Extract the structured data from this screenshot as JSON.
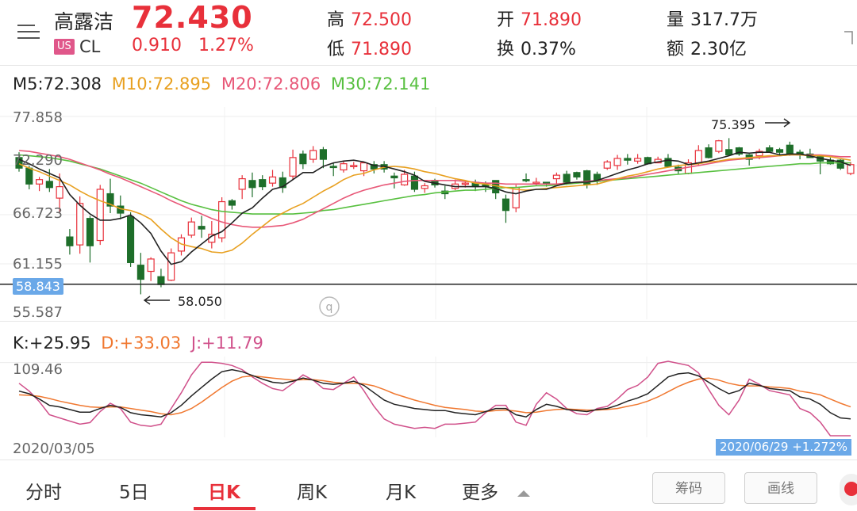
{
  "header": {
    "stock_name": "高露洁",
    "market_badge": "US",
    "ticker": "CL",
    "price": "72.430",
    "change": "0.910",
    "change_pct": "1.27%",
    "high_label": "高",
    "high_value": "72.500",
    "low_label": "低",
    "low_value": "71.890",
    "open_label": "开",
    "open_value": "71.890",
    "turnover_label": "换",
    "turnover_value": "0.37%",
    "volume_label": "量",
    "volume_value": "317.7万",
    "amount_label": "额",
    "amount_value": "2.30亿",
    "menu_icon": "menu-icon"
  },
  "colors": {
    "up": "#e8303a",
    "down": "#1e6e2a",
    "ma5": "#222222",
    "ma10": "#e8a020",
    "ma20": "#e85878",
    "ma30": "#58c040",
    "k": "#222222",
    "d": "#f07830",
    "j": "#d0508a",
    "badge": "#6aa8e8"
  },
  "ma": {
    "m5": "M5:72.308",
    "m10": "M10:72.895",
    "m20": "M20:72.806",
    "m30": "M30:72.141"
  },
  "price_axis": {
    "t1": "77.858",
    "t2": "72.290",
    "t3": "66.723",
    "t4": "61.155",
    "t5": "55.587"
  },
  "current_line_label": "58.843",
  "annotations": {
    "high": "75.395",
    "low": "58.050"
  },
  "kdj": {
    "k": "K:+25.95",
    "d": "D:+33.03",
    "j": "J:+11.79",
    "top": "109.46"
  },
  "dates": {
    "start": "2020/03/05",
    "end": "2020/06/29",
    "end_change": "+1.272%"
  },
  "tabs": [
    {
      "label": "分时"
    },
    {
      "label": "5日"
    },
    {
      "label": "日K"
    },
    {
      "label": "周K"
    },
    {
      "label": "月K"
    },
    {
      "label": "更多"
    }
  ],
  "buttons": {
    "chips": "筹码",
    "draw": "画线"
  },
  "chart_data": {
    "type": "candlestick",
    "ylim": [
      55.587,
      77.858
    ],
    "candles": [
      [
        73.2,
        72.0,
        73.8,
        71.6
      ],
      [
        72.0,
        70.2,
        72.3,
        69.6
      ],
      [
        70.2,
        70.7,
        71.0,
        69.4
      ],
      [
        70.5,
        69.8,
        71.9,
        69.3
      ],
      [
        68.6,
        69.9,
        71.4,
        66.9
      ],
      [
        64.2,
        63.2,
        65.1,
        62.2
      ],
      [
        63.3,
        68.0,
        68.8,
        62.3
      ],
      [
        66.3,
        63.2,
        66.6,
        61.3
      ],
      [
        63.8,
        69.6,
        70.1,
        63.3
      ],
      [
        69.1,
        67.7,
        70.8,
        66.9
      ],
      [
        67.7,
        66.9,
        68.9,
        66.2
      ],
      [
        66.5,
        61.3,
        67.0,
        60.8
      ],
      [
        61.0,
        59.4,
        62.4,
        57.7
      ],
      [
        60.3,
        61.7,
        61.9,
        59.2
      ],
      [
        59.7,
        58.8,
        60.6,
        58.5
      ],
      [
        59.3,
        62.4,
        62.9,
        59.2
      ],
      [
        62.6,
        64.1,
        64.5,
        62.1
      ],
      [
        64.4,
        65.9,
        66.4,
        64.1
      ],
      [
        65.4,
        65.1,
        66.6,
        64.1
      ],
      [
        63.6,
        64.5,
        66.0,
        62.9
      ],
      [
        64.1,
        68.2,
        68.7,
        63.6
      ],
      [
        68.3,
        67.8,
        68.5,
        67.3
      ],
      [
        69.6,
        70.8,
        71.2,
        68.5
      ],
      [
        70.6,
        69.8,
        71.5,
        68.7
      ],
      [
        70.7,
        69.9,
        71.2,
        69.5
      ],
      [
        70.3,
        71.0,
        71.8,
        69.9
      ],
      [
        70.9,
        69.8,
        71.6,
        69.2
      ],
      [
        71.1,
        73.2,
        74.1,
        70.7
      ],
      [
        73.6,
        72.5,
        74.0,
        71.9
      ],
      [
        73.0,
        74.0,
        74.5,
        72.6
      ],
      [
        74.1,
        73.0,
        74.4,
        72.0
      ],
      [
        72.2,
        72.1,
        72.6,
        71.1
      ],
      [
        71.8,
        72.5,
        72.8,
        71.5
      ],
      [
        72.2,
        72.3,
        72.7,
        71.9
      ],
      [
        71.7,
        72.6,
        72.7,
        71.1
      ],
      [
        72.4,
        71.9,
        72.8,
        71.4
      ],
      [
        72.4,
        71.9,
        72.8,
        71.5
      ],
      [
        71.1,
        70.9,
        71.5,
        69.7
      ],
      [
        70.1,
        71.3,
        71.8,
        70.0
      ],
      [
        71.1,
        69.6,
        71.6,
        69.3
      ],
      [
        69.7,
        70.0,
        70.3,
        69.2
      ],
      [
        70.6,
        70.1,
        70.8,
        69.8
      ],
      [
        69.4,
        69.1,
        70.0,
        68.5
      ],
      [
        69.7,
        70.2,
        70.7,
        69.5
      ],
      [
        70.2,
        70.3,
        70.6,
        69.8
      ],
      [
        70.4,
        69.9,
        70.7,
        69.4
      ],
      [
        70.1,
        70.0,
        70.5,
        69.3
      ],
      [
        70.6,
        69.2,
        70.5,
        68.5
      ],
      [
        68.5,
        67.2,
        69.0,
        65.8
      ],
      [
        67.5,
        69.8,
        70.1,
        67.0
      ],
      [
        70.7,
        70.6,
        71.4,
        70.4
      ],
      [
        70.4,
        70.4,
        70.9,
        70.0
      ],
      [
        70.4,
        70.2,
        70.4,
        69.9
      ],
      [
        70.8,
        71.2,
        71.5,
        70.2
      ],
      [
        71.3,
        70.4,
        71.7,
        70.1
      ],
      [
        71.5,
        71.0,
        71.6,
        70.7
      ],
      [
        71.7,
        70.1,
        71.8,
        69.7
      ],
      [
        71.3,
        70.5,
        71.6,
        70.1
      ],
      [
        72.0,
        72.7,
        72.9,
        71.8
      ],
      [
        72.3,
        73.1,
        73.5,
        71.8
      ],
      [
        73.1,
        72.9,
        73.6,
        72.4
      ],
      [
        72.8,
        73.1,
        73.6,
        72.5
      ],
      [
        73.2,
        72.5,
        73.3,
        72.4
      ],
      [
        72.6,
        73.0,
        73.3,
        72.6
      ],
      [
        73.1,
        72.2,
        73.6,
        72.1
      ],
      [
        72.1,
        71.7,
        72.4,
        71.3
      ],
      [
        71.4,
        72.6,
        73.0,
        71.3
      ],
      [
        72.6,
        74.0,
        74.6,
        72.3
      ],
      [
        74.3,
        73.2,
        74.7,
        73.1
      ],
      [
        73.9,
        75.1,
        75.2,
        73.7
      ],
      [
        74.1,
        73.5,
        75.4,
        73.4
      ],
      [
        74.3,
        73.6,
        74.4,
        73.4
      ],
      [
        73.5,
        73.0,
        73.6,
        72.3
      ],
      [
        73.4,
        73.9,
        74.2,
        73.0
      ],
      [
        74.3,
        73.9,
        74.6,
        73.8
      ],
      [
        74.1,
        73.8,
        74.3,
        73.5
      ],
      [
        74.6,
        73.6,
        75.0,
        73.4
      ],
      [
        73.8,
        73.5,
        74.1,
        73.0
      ],
      [
        73.6,
        73.2,
        74.2,
        73.2
      ],
      [
        73.3,
        72.8,
        73.5,
        71.3
      ],
      [
        72.9,
        72.5,
        73.2,
        72.4
      ],
      [
        72.9,
        72.0,
        73.0,
        71.8
      ],
      [
        71.4,
        72.4,
        72.7,
        71.2
      ]
    ],
    "ma5": [
      73.0,
      72.5,
      71.9,
      71.4,
      70.9,
      69.0,
      67.8,
      66.8,
      66.1,
      66.1,
      66.3,
      66.7,
      65.8,
      64.6,
      62.6,
      61.1,
      61.4,
      62.5,
      63.4,
      64.3,
      64.8,
      65.8,
      66.9,
      67.5,
      68.6,
      69.6,
      69.9,
      70.7,
      71.5,
      71.5,
      72.2,
      72.6,
      72.8,
      72.9,
      72.7,
      72.3,
      72.2,
      71.9,
      71.6,
      71.2,
      70.5,
      70.3,
      70.1,
      69.9,
      69.9,
      69.9,
      69.9,
      69.7,
      69.3,
      69.1,
      69.4,
      69.6,
      69.6,
      70.0,
      70.3,
      70.4,
      70.4,
      70.6,
      71.0,
      71.4,
      71.8,
      72.1,
      72.5,
      72.7,
      72.9,
      72.8,
      72.4,
      72.6,
      72.8,
      73.1,
      73.4,
      73.8,
      73.7,
      73.8,
      73.8,
      73.5,
      73.6,
      73.6,
      73.4,
      73.1,
      72.9,
      72.7,
      72.3
    ],
    "ma10": [
      72.5,
      72.0,
      71.6,
      71.1,
      70.6,
      70.1,
      69.4,
      68.8,
      68.3,
      67.9,
      67.4,
      67.2,
      66.8,
      66.2,
      65.1,
      64.1,
      63.4,
      63.1,
      62.9,
      62.5,
      62.4,
      62.7,
      63.5,
      64.5,
      65.4,
      66.3,
      66.9,
      67.5,
      68.0,
      68.7,
      69.4,
      70.0,
      70.7,
      71.2,
      71.4,
      71.8,
      72.1,
      72.2,
      72.1,
      71.9,
      71.6,
      71.4,
      71.1,
      70.8,
      70.6,
      70.3,
      70.2,
      70.0,
      69.8,
      69.6,
      69.5,
      69.6,
      69.7,
      69.8,
      69.9,
      70.0,
      70.1,
      70.2,
      70.5,
      70.8,
      71.1,
      71.3,
      71.6,
      71.9,
      72.1,
      72.3,
      72.4,
      72.5,
      72.7,
      72.8,
      73.0,
      73.1,
      73.2,
      73.3,
      73.4,
      73.4,
      73.5,
      73.5,
      73.4,
      73.4,
      73.3,
      73.1,
      72.9
    ],
    "ma20": [
      74.0,
      73.9,
      73.7,
      73.5,
      73.3,
      73.0,
      72.6,
      72.2,
      71.8,
      71.3,
      70.9,
      70.4,
      69.9,
      69.4,
      68.9,
      68.3,
      67.8,
      67.3,
      66.8,
      66.3,
      65.9,
      65.6,
      65.4,
      65.3,
      65.3,
      65.4,
      65.5,
      65.8,
      66.2,
      66.8,
      67.4,
      68.0,
      68.6,
      69.1,
      69.5,
      69.8,
      70.1,
      70.3,
      70.5,
      70.6,
      70.6,
      70.6,
      70.6,
      70.6,
      70.5,
      70.4,
      70.3,
      70.3,
      70.2,
      70.2,
      70.2,
      70.2,
      70.2,
      70.2,
      70.3,
      70.4,
      70.5,
      70.6,
      70.7,
      70.8,
      70.9,
      71.1,
      71.3,
      71.5,
      71.7,
      71.9,
      72.1,
      72.3,
      72.5,
      72.7,
      72.9,
      73.0,
      73.1,
      73.2,
      73.3,
      73.4,
      73.5,
      73.5,
      73.5,
      73.5,
      73.4,
      73.3,
      73.3
    ],
    "ma30": [
      73.5,
      73.4,
      73.3,
      73.2,
      73.0,
      72.8,
      72.5,
      72.2,
      71.9,
      71.5,
      71.1,
      70.7,
      70.3,
      69.8,
      69.3,
      68.8,
      68.3,
      67.9,
      67.6,
      67.3,
      67.1,
      67.0,
      66.9,
      66.8,
      66.8,
      66.8,
      66.8,
      66.8,
      66.9,
      67.0,
      67.2,
      67.3,
      67.5,
      67.7,
      67.9,
      68.1,
      68.3,
      68.5,
      68.7,
      68.9,
      69.0,
      69.2,
      69.3,
      69.4,
      69.5,
      69.5,
      69.6,
      69.7,
      69.8,
      69.8,
      69.9,
      70.0,
      70.0,
      70.1,
      70.2,
      70.3,
      70.4,
      70.5,
      70.6,
      70.7,
      70.8,
      70.9,
      71.0,
      71.1,
      71.2,
      71.3,
      71.4,
      71.5,
      71.6,
      71.7,
      71.8,
      71.9,
      72.0,
      72.1,
      72.2,
      72.3,
      72.4,
      72.5,
      72.5,
      72.6,
      72.6,
      72.6,
      72.6
    ],
    "kdj_ylim": [
      -30,
      115
    ],
    "kdj_k": [
      55,
      50,
      40,
      28,
      25,
      20,
      15,
      15,
      22,
      28,
      24,
      14,
      10,
      8,
      6,
      14,
      28,
      46,
      62,
      78,
      92,
      96,
      92,
      85,
      78,
      72,
      70,
      74,
      80,
      76,
      70,
      68,
      70,
      74,
      66,
      52,
      38,
      30,
      26,
      22,
      20,
      18,
      18,
      14,
      12,
      10,
      16,
      22,
      22,
      10,
      6,
      20,
      30,
      26,
      20,
      18,
      16,
      20,
      22,
      28,
      36,
      42,
      50,
      66,
      82,
      88,
      90,
      84,
      72,
      60,
      50,
      56,
      70,
      66,
      60,
      58,
      56,
      44,
      40,
      30,
      14,
      4,
      2
    ],
    "kdj_d": [
      48,
      47,
      45,
      41,
      36,
      32,
      28,
      25,
      24,
      25,
      25,
      22,
      19,
      16,
      12,
      10,
      14,
      22,
      34,
      48,
      62,
      74,
      82,
      84,
      82,
      80,
      78,
      76,
      77,
      77,
      75,
      72,
      70,
      70,
      69,
      65,
      58,
      50,
      44,
      38,
      33,
      28,
      24,
      22,
      20,
      17,
      16,
      18,
      19,
      17,
      14,
      15,
      18,
      20,
      21,
      20,
      19,
      19,
      20,
      22,
      26,
      30,
      36,
      44,
      54,
      64,
      72,
      78,
      80,
      76,
      70,
      66,
      65,
      65,
      63,
      62,
      60,
      55,
      52,
      48,
      40,
      32,
      25
    ],
    "kdj_j": [
      70,
      55,
      35,
      10,
      4,
      -2,
      -8,
      -5,
      16,
      32,
      22,
      -4,
      -10,
      -12,
      -8,
      22,
      52,
      86,
      110,
      110,
      108,
      104,
      96,
      82,
      70,
      60,
      56,
      70,
      86,
      76,
      60,
      58,
      70,
      82,
      56,
      26,
      2,
      -8,
      -12,
      -16,
      -14,
      -16,
      -8,
      -8,
      -6,
      -4,
      14,
      28,
      28,
      -4,
      -10,
      30,
      52,
      40,
      22,
      12,
      10,
      22,
      26,
      40,
      58,
      66,
      82,
      108,
      112,
      108,
      104,
      90,
      58,
      28,
      10,
      38,
      78,
      68,
      56,
      52,
      48,
      22,
      14,
      -4,
      -36,
      -52,
      -44
    ]
  }
}
